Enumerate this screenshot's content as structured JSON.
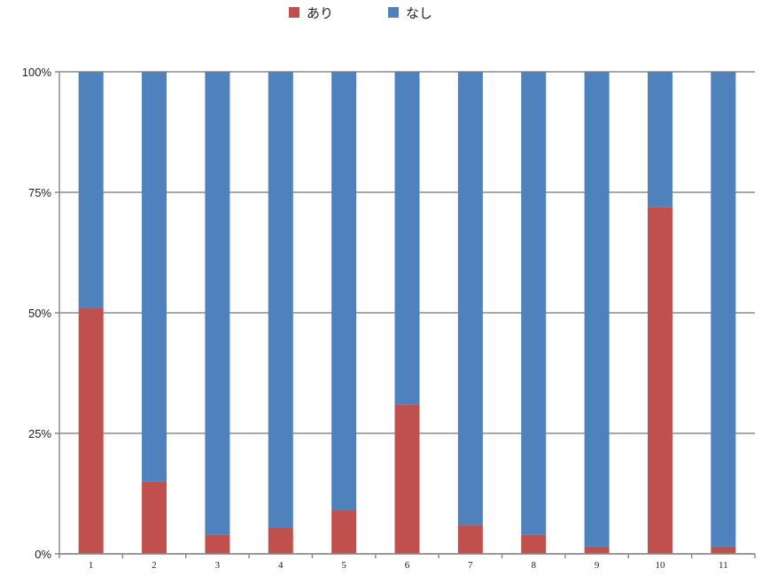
{
  "chart_data": {
    "type": "bar",
    "stacked": true,
    "percent": true,
    "categories": [
      "1",
      "2",
      "3",
      "4",
      "5",
      "6",
      "7",
      "8",
      "9",
      "10",
      "11"
    ],
    "series": [
      {
        "name": "あり",
        "color": "#c0504d",
        "values": [
          51,
          15,
          4,
          5.5,
          9,
          31,
          6,
          4,
          1.5,
          72,
          1.5
        ]
      },
      {
        "name": "なし",
        "color": "#4f81bd",
        "values": [
          49,
          85,
          96,
          94.5,
          91,
          69,
          94,
          96,
          98.5,
          28,
          98.5
        ]
      }
    ],
    "yticks": [
      "0%",
      "25%",
      "50%",
      "75%",
      "100%"
    ],
    "ylim": [
      0,
      100
    ],
    "grid": true,
    "legend": "top-center"
  }
}
